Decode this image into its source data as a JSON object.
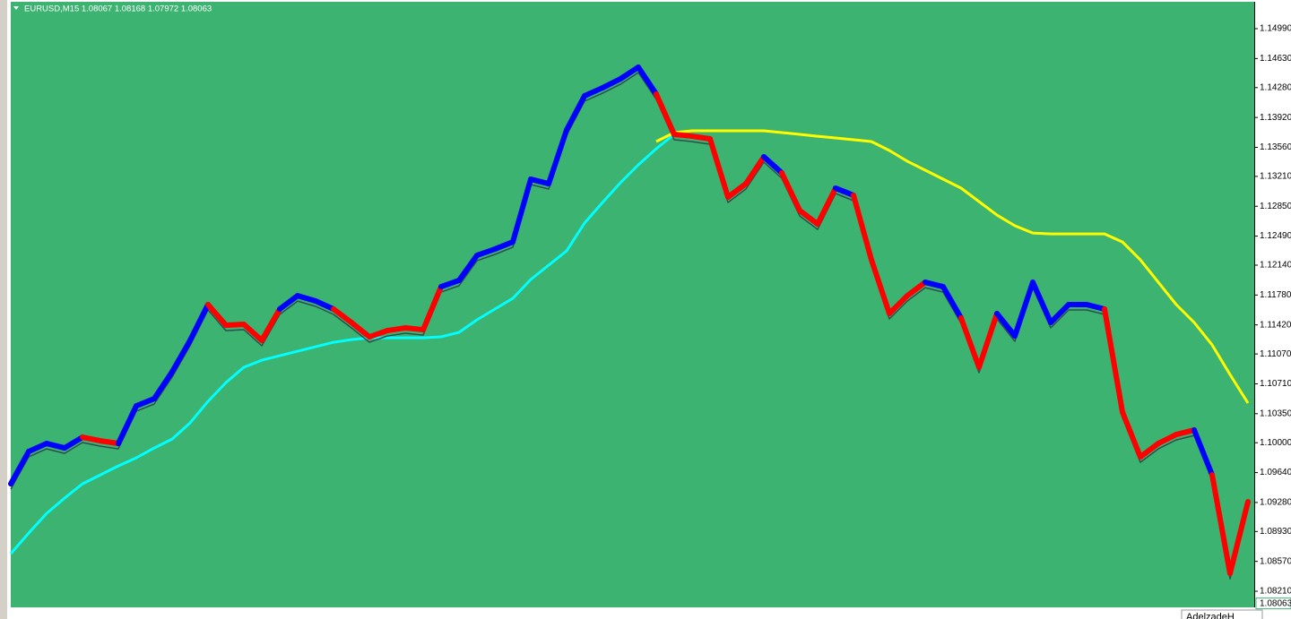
{
  "chart_data": {
    "type": "line",
    "title": "EURUSD,M15  1.08067 1.08168 1.07972 1.08063",
    "watermark": "AdelzadeH",
    "current_price": 1.08063,
    "background": "#3cb371",
    "ylim": [
      1.08016,
      1.15314
    ],
    "yticks": [
      {
        "value": 1.1499,
        "label": "1.14990"
      },
      {
        "value": 1.1463,
        "label": "1.14630"
      },
      {
        "value": 1.1428,
        "label": "1.14280"
      },
      {
        "value": 1.1392,
        "label": "1.13920"
      },
      {
        "value": 1.1356,
        "label": "1.13560"
      },
      {
        "value": 1.1321,
        "label": "1.13210"
      },
      {
        "value": 1.1285,
        "label": "1.12850"
      },
      {
        "value": 1.1249,
        "label": "1.12490"
      },
      {
        "value": 1.1214,
        "label": "1.12140"
      },
      {
        "value": 1.1178,
        "label": "1.11780"
      },
      {
        "value": 1.1142,
        "label": "1.11420"
      },
      {
        "value": 1.1107,
        "label": "1.11070"
      },
      {
        "value": 1.1071,
        "label": "1.10710"
      },
      {
        "value": 1.1035,
        "label": "1.10350"
      },
      {
        "value": 1.1,
        "label": "1.10000"
      },
      {
        "value": 1.0964,
        "label": "1.09640"
      },
      {
        "value": 1.0928,
        "label": "1.09280"
      },
      {
        "value": 1.0893,
        "label": "1.08930"
      },
      {
        "value": 1.0857,
        "label": "1.08570"
      },
      {
        "value": 1.0821,
        "label": "1.08210"
      }
    ],
    "price": {
      "values": [
        1.09505,
        1.09894,
        1.09991,
        1.09937,
        1.10067,
        1.10023,
        1.09991,
        1.10444,
        1.10531,
        1.10855,
        1.11233,
        1.11665,
        1.11416,
        1.11427,
        1.11233,
        1.11611,
        1.11772,
        1.11708,
        1.11611,
        1.11449,
        1.11276,
        1.11351,
        1.11384,
        1.11362,
        1.1188,
        1.11956,
        1.12258,
        1.12334,
        1.1242,
        1.13176,
        1.13122,
        1.1377,
        1.1418,
        1.14277,
        1.14385,
        1.14526,
        1.14202,
        1.13716,
        1.13694,
        1.13662,
        1.1296,
        1.13122,
        1.13446,
        1.13252,
        1.12798,
        1.12636,
        1.13068,
        1.12982,
        1.12204,
        1.11557,
        1.11772,
        1.11934,
        1.1188,
        1.11503,
        1.10909,
        1.11557,
        1.11287,
        1.11934,
        1.11449,
        1.11665,
        1.11665,
        1.11611,
        1.10369,
        1.09829,
        1.09991,
        1.10099,
        1.10153,
        1.09613,
        1.08425,
        1.09289
      ],
      "segment_colors": [
        "#0000ff",
        "#0000ff",
        "#0000ff",
        "#0000ff",
        "#ff0000",
        "#ff0000",
        "#0000ff",
        "#0000ff",
        "#0000ff",
        "#0000ff",
        "#0000ff",
        "#ff0000",
        "#ff0000",
        "#ff0000",
        "#ff0000",
        "#0000ff",
        "#0000ff",
        "#0000ff",
        "#ff0000",
        "#ff0000",
        "#ff0000",
        "#ff0000",
        "#ff0000",
        "#ff0000",
        "#0000ff",
        "#0000ff",
        "#0000ff",
        "#0000ff",
        "#0000ff",
        "#0000ff",
        "#0000ff",
        "#0000ff",
        "#0000ff",
        "#0000ff",
        "#0000ff",
        "#0000ff",
        "#ff0000",
        "#ff0000",
        "#ff0000",
        "#ff0000",
        "#ff0000",
        "#ff0000",
        "#0000ff",
        "#ff0000",
        "#ff0000",
        "#ff0000",
        "#0000ff",
        "#ff0000",
        "#ff0000",
        "#ff0000",
        "#ff0000",
        "#0000ff",
        "#0000ff",
        "#ff0000",
        "#ff0000",
        "#0000ff",
        "#0000ff",
        "#0000ff",
        "#0000ff",
        "#0000ff",
        "#0000ff",
        "#ff0000",
        "#ff0000",
        "#ff0000",
        "#ff0000",
        "#ff0000",
        "#0000ff",
        "#ff0000",
        "#ff0000"
      ]
    },
    "series": [
      {
        "color": "#00ffff",
        "values": [
          1.08663,
          1.08911,
          1.09149,
          1.09332,
          1.09505,
          1.09613,
          1.09721,
          1.09818,
          1.09937,
          1.10045,
          1.10239,
          1.10498,
          1.10725,
          1.10909,
          1.10995,
          1.11049,
          1.11103,
          1.11157,
          1.11211,
          1.11243,
          1.11265,
          1.11265,
          1.11265,
          1.11265,
          1.11276,
          1.1133,
          1.11481,
          1.11611,
          1.1174,
          1.11967,
          1.1214,
          1.12312,
          1.12647,
          1.12895,
          1.13133,
          1.13349,
          1.13543,
          1.13716,
          null,
          null,
          null,
          null,
          null,
          null,
          null,
          null,
          null,
          null,
          null,
          null,
          null,
          null,
          null,
          null,
          null,
          null,
          null,
          null,
          null,
          null,
          null,
          null,
          null,
          null,
          null,
          null,
          null,
          null,
          null,
          null
        ]
      },
      {
        "color": "#ffff00",
        "values": [
          null,
          null,
          null,
          null,
          null,
          null,
          null,
          null,
          null,
          null,
          null,
          null,
          null,
          null,
          null,
          null,
          null,
          null,
          null,
          null,
          null,
          null,
          null,
          null,
          null,
          null,
          null,
          null,
          null,
          null,
          null,
          null,
          null,
          null,
          null,
          null,
          1.1363,
          1.13738,
          1.13759,
          1.13759,
          1.13759,
          1.13759,
          1.13759,
          1.13738,
          1.13716,
          1.13694,
          1.13673,
          1.13651,
          1.1363,
          1.13522,
          1.13392,
          1.13284,
          1.13176,
          1.13068,
          1.12906,
          1.12744,
          1.12615,
          1.12528,
          1.12517,
          1.12517,
          1.12517,
          1.12517,
          1.1242,
          1.12204,
          1.11934,
          1.11665,
          1.11449,
          1.11179,
          1.10822,
          1.10477
        ]
      }
    ]
  }
}
